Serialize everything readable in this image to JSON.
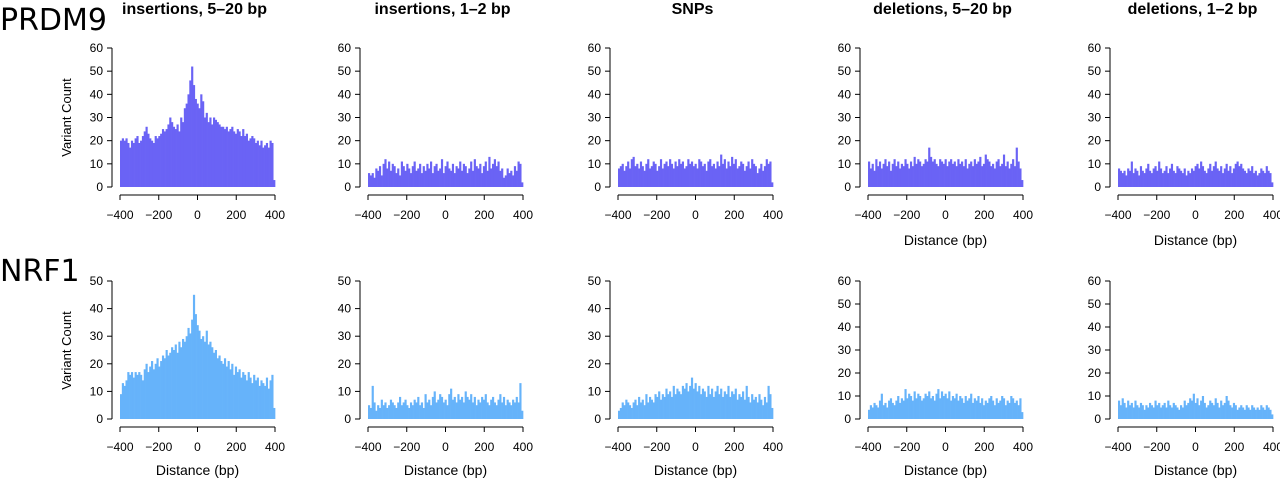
{
  "rows": [
    {
      "label": "PRDM9",
      "color": "#6a63f5"
    },
    {
      "label": "NRF1",
      "color": "#66b3fa"
    }
  ],
  "chart_data": [
    {
      "type": "bar",
      "row": 0,
      "col": 0,
      "title": "insertions, 5–20 bp",
      "xlabel": "",
      "ylabel": "Variant Count",
      "xlim": [
        -400,
        400
      ],
      "ylim": [
        0,
        60
      ],
      "yticks": [
        0,
        10,
        20,
        30,
        40,
        50,
        60
      ],
      "xticks": [
        -400,
        -200,
        0,
        200,
        400
      ],
      "values": [
        20,
        21,
        20,
        21,
        19,
        17,
        20,
        19,
        21,
        22,
        19,
        20,
        22,
        24,
        26,
        23,
        21,
        20,
        19,
        22,
        21,
        22,
        23,
        25,
        24,
        25,
        27,
        30,
        28,
        26,
        25,
        27,
        24,
        30,
        28,
        34,
        36,
        40,
        46,
        52,
        44,
        38,
        36,
        34,
        40,
        37,
        30,
        32,
        28,
        30,
        27,
        30,
        29,
        28,
        27,
        26,
        26,
        25,
        26,
        24,
        25,
        26,
        24,
        23,
        25,
        24,
        22,
        25,
        22,
        23,
        20,
        21,
        22,
        21,
        19,
        20,
        18,
        20,
        17,
        18,
        19,
        17,
        20,
        19,
        3
      ]
    },
    {
      "type": "bar",
      "row": 0,
      "col": 1,
      "title": "insertions, 1–2 bp",
      "xlabel": "",
      "ylabel": "",
      "xlim": [
        -400,
        400
      ],
      "ylim": [
        0,
        60
      ],
      "yticks": [
        0,
        10,
        20,
        30,
        40,
        50,
        60
      ],
      "xticks": [
        -400,
        -200,
        0,
        200,
        400
      ],
      "values": [
        6,
        5,
        6,
        4,
        8,
        7,
        9,
        5,
        10,
        12,
        8,
        11,
        7,
        10,
        9,
        6,
        8,
        5,
        11,
        9,
        7,
        10,
        8,
        6,
        9,
        11,
        7,
        8,
        10,
        6,
        9,
        7,
        10,
        8,
        11,
        6,
        9,
        10,
        7,
        8,
        12,
        6,
        9,
        11,
        8,
        7,
        10,
        6,
        9,
        8,
        11,
        7,
        10,
        9,
        6,
        8,
        11,
        7,
        12,
        9,
        8,
        10,
        6,
        9,
        11,
        7,
        13,
        8,
        10,
        12,
        9,
        11,
        7,
        8,
        4,
        5,
        8,
        6,
        7,
        5,
        9,
        7,
        11,
        10,
        2
      ]
    },
    {
      "type": "bar",
      "row": 0,
      "col": 2,
      "title": "SNPs",
      "xlabel": "",
      "ylabel": "",
      "xlim": [
        -400,
        400
      ],
      "ylim": [
        0,
        60
      ],
      "yticks": [
        0,
        10,
        20,
        30,
        40,
        50,
        60
      ],
      "xticks": [
        -400,
        -200,
        0,
        200,
        400
      ],
      "values": [
        8,
        9,
        10,
        7,
        9,
        11,
        8,
        12,
        13,
        9,
        10,
        8,
        11,
        9,
        7,
        10,
        12,
        8,
        9,
        11,
        10,
        7,
        9,
        12,
        8,
        10,
        11,
        9,
        12,
        10,
        8,
        11,
        9,
        12,
        10,
        11,
        8,
        9,
        12,
        10,
        11,
        9,
        10,
        8,
        12,
        11,
        9,
        10,
        7,
        11,
        12,
        9,
        10,
        8,
        11,
        9,
        14,
        10,
        12,
        8,
        11,
        9,
        13,
        10,
        12,
        8,
        9,
        11,
        10,
        7,
        9,
        11,
        8,
        12,
        10,
        9,
        6,
        8,
        10,
        7,
        9,
        12,
        10,
        11,
        2
      ]
    },
    {
      "type": "bar",
      "row": 0,
      "col": 3,
      "title": "deletions, 5–20 bp",
      "xlabel": "Distance (bp)",
      "ylabel": "",
      "xlim": [
        -400,
        400
      ],
      "ylim": [
        0,
        60
      ],
      "yticks": [
        0,
        10,
        20,
        30,
        40,
        50,
        60
      ],
      "xticks": [
        -400,
        -200,
        0,
        200,
        400
      ],
      "values": [
        11,
        8,
        10,
        7,
        12,
        9,
        11,
        8,
        10,
        12,
        9,
        11,
        7,
        10,
        12,
        9,
        11,
        8,
        10,
        9,
        12,
        10,
        8,
        11,
        9,
        13,
        10,
        12,
        11,
        9,
        10,
        12,
        11,
        17,
        13,
        11,
        12,
        10,
        9,
        12,
        11,
        10,
        12,
        9,
        11,
        12,
        10,
        11,
        9,
        12,
        10,
        11,
        9,
        12,
        8,
        10,
        11,
        9,
        12,
        10,
        11,
        13,
        9,
        10,
        14,
        12,
        11,
        9,
        10,
        8,
        11,
        12,
        9,
        10,
        14,
        9,
        11,
        8,
        10,
        12,
        9,
        17,
        11,
        8,
        3
      ]
    },
    {
      "type": "bar",
      "row": 0,
      "col": 4,
      "title": "deletions, 1–2 bp",
      "xlabel": "Distance (bp)",
      "ylabel": "",
      "xlim": [
        -400,
        400
      ],
      "ylim": [
        0,
        60
      ],
      "yticks": [
        0,
        10,
        20,
        30,
        40,
        50,
        60
      ],
      "xticks": [
        -400,
        -200,
        0,
        200,
        400
      ],
      "values": [
        8,
        7,
        6,
        7,
        5,
        8,
        7,
        11,
        6,
        8,
        7,
        5,
        9,
        7,
        6,
        8,
        10,
        7,
        6,
        8,
        9,
        7,
        11,
        8,
        6,
        7,
        9,
        6,
        8,
        10,
        7,
        6,
        9,
        8,
        7,
        6,
        8,
        5,
        7,
        6,
        8,
        7,
        9,
        10,
        8,
        11,
        9,
        7,
        6,
        8,
        10,
        7,
        9,
        11,
        8,
        7,
        9,
        6,
        8,
        10,
        7,
        9,
        6,
        8,
        10,
        11,
        9,
        10,
        8,
        7,
        6,
        8,
        7,
        9,
        6,
        7,
        5,
        6,
        8,
        7,
        6,
        9,
        7,
        6,
        2
      ]
    },
    {
      "type": "bar",
      "row": 1,
      "col": 0,
      "title": "",
      "xlabel": "Distance (bp)",
      "ylabel": "Variant Count",
      "xlim": [
        -400,
        400
      ],
      "ylim": [
        0,
        50
      ],
      "yticks": [
        0,
        10,
        20,
        30,
        40,
        50
      ],
      "xticks": [
        -400,
        -200,
        0,
        200,
        400
      ],
      "values": [
        9,
        13,
        12,
        14,
        17,
        16,
        17,
        15,
        17,
        16,
        17,
        16,
        14,
        18,
        20,
        17,
        19,
        21,
        18,
        20,
        22,
        19,
        21,
        23,
        22,
        25,
        23,
        24,
        26,
        25,
        27,
        24,
        28,
        26,
        29,
        28,
        30,
        33,
        31,
        36,
        45,
        38,
        34,
        32,
        29,
        30,
        28,
        32,
        27,
        28,
        26,
        24,
        25,
        22,
        23,
        21,
        20,
        22,
        19,
        21,
        18,
        20,
        16,
        19,
        17,
        18,
        15,
        17,
        16,
        14,
        17,
        15,
        13,
        16,
        14,
        15,
        12,
        14,
        13,
        12,
        15,
        11,
        14,
        16,
        4
      ]
    },
    {
      "type": "bar",
      "row": 1,
      "col": 1,
      "title": "",
      "xlabel": "Distance (bp)",
      "ylabel": "",
      "xlim": [
        -400,
        400
      ],
      "ylim": [
        0,
        50
      ],
      "yticks": [
        0,
        10,
        20,
        30,
        40,
        50
      ],
      "xticks": [
        -400,
        -200,
        0,
        200,
        400
      ],
      "values": [
        5,
        4,
        12,
        6,
        3,
        5,
        4,
        7,
        5,
        6,
        4,
        5,
        7,
        6,
        5,
        4,
        6,
        8,
        5,
        6,
        7,
        5,
        4,
        6,
        5,
        7,
        6,
        8,
        5,
        6,
        4,
        9,
        6,
        7,
        5,
        8,
        10,
        6,
        7,
        9,
        8,
        6,
        7,
        5,
        9,
        11,
        7,
        8,
        6,
        9,
        7,
        8,
        6,
        10,
        8,
        7,
        9,
        6,
        8,
        5,
        7,
        6,
        8,
        7,
        9,
        6,
        5,
        7,
        8,
        6,
        5,
        7,
        9,
        6,
        8,
        5,
        7,
        6,
        5,
        7,
        6,
        8,
        6,
        13,
        3
      ]
    },
    {
      "type": "bar",
      "row": 1,
      "col": 2,
      "title": "",
      "xlabel": "Distance (bp)",
      "ylabel": "",
      "xlim": [
        -400,
        400
      ],
      "ylim": [
        0,
        50
      ],
      "yticks": [
        0,
        10,
        20,
        30,
        40,
        50
      ],
      "xticks": [
        -400,
        -200,
        0,
        200,
        400
      ],
      "values": [
        3,
        4,
        6,
        5,
        7,
        6,
        5,
        4,
        6,
        7,
        5,
        8,
        6,
        7,
        5,
        9,
        6,
        8,
        7,
        6,
        9,
        8,
        10,
        7,
        9,
        8,
        11,
        9,
        10,
        8,
        12,
        9,
        11,
        10,
        9,
        12,
        11,
        13,
        10,
        12,
        15,
        11,
        13,
        10,
        12,
        9,
        11,
        10,
        8,
        12,
        9,
        11,
        8,
        10,
        12,
        9,
        11,
        8,
        10,
        9,
        12,
        8,
        10,
        9,
        11,
        7,
        9,
        8,
        10,
        7,
        12,
        8,
        6,
        9,
        7,
        8,
        6,
        9,
        7,
        5,
        8,
        6,
        12,
        9,
        4
      ]
    },
    {
      "type": "bar",
      "row": 1,
      "col": 3,
      "title": "",
      "xlabel": "Distance (bp)",
      "ylabel": "",
      "xlim": [
        -400,
        400
      ],
      "ylim": [
        0,
        60
      ],
      "yticks": [
        0,
        10,
        20,
        30,
        40,
        50,
        60
      ],
      "xticks": [
        -400,
        -200,
        0,
        200,
        400
      ],
      "values": [
        4,
        6,
        5,
        7,
        6,
        5,
        8,
        11,
        6,
        7,
        5,
        8,
        9,
        7,
        6,
        8,
        10,
        7,
        9,
        8,
        13,
        9,
        11,
        10,
        8,
        12,
        9,
        11,
        10,
        8,
        9,
        11,
        10,
        12,
        9,
        10,
        8,
        11,
        13,
        9,
        12,
        10,
        11,
        9,
        12,
        8,
        10,
        9,
        11,
        8,
        10,
        9,
        7,
        10,
        8,
        9,
        11,
        7,
        9,
        8,
        10,
        7,
        9,
        6,
        8,
        7,
        9,
        10,
        8,
        6,
        9,
        7,
        8,
        10,
        9,
        6,
        8,
        7,
        10,
        9,
        7,
        8,
        6,
        9,
        3
      ]
    },
    {
      "type": "bar",
      "row": 1,
      "col": 4,
      "title": "",
      "xlabel": "Distance (bp)",
      "ylabel": "",
      "xlim": [
        -400,
        400
      ],
      "ylim": [
        0,
        60
      ],
      "yticks": [
        0,
        10,
        20,
        30,
        40,
        50,
        60
      ],
      "xticks": [
        -400,
        -200,
        0,
        200,
        400
      ],
      "values": [
        8,
        6,
        9,
        7,
        5,
        8,
        6,
        7,
        5,
        8,
        6,
        5,
        7,
        6,
        4,
        6,
        5,
        7,
        6,
        5,
        8,
        6,
        7,
        5,
        6,
        7,
        5,
        8,
        6,
        5,
        7,
        6,
        5,
        4,
        6,
        5,
        8,
        6,
        7,
        9,
        8,
        11,
        7,
        9,
        6,
        8,
        10,
        7,
        5,
        6,
        8,
        7,
        6,
        9,
        7,
        5,
        8,
        6,
        7,
        10,
        8,
        6,
        5,
        7,
        6,
        4,
        5,
        6,
        5,
        4,
        6,
        5,
        4,
        6,
        5,
        4,
        5,
        4,
        6,
        5,
        4,
        6,
        5,
        4,
        2
      ]
    }
  ]
}
